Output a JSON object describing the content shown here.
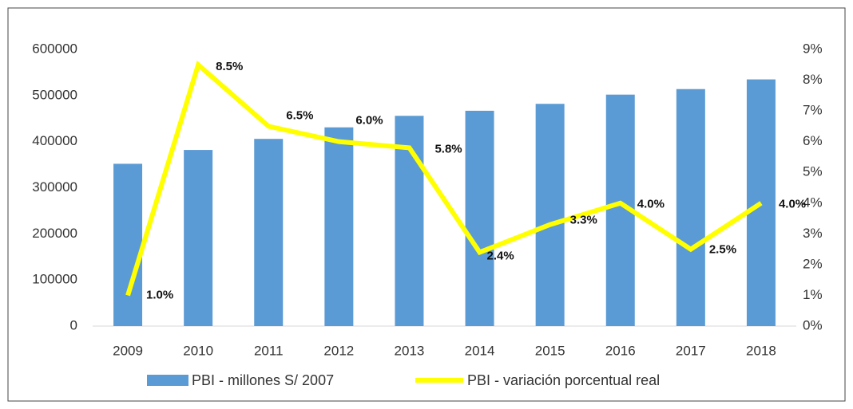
{
  "chart_data": {
    "type": "bar",
    "categories": [
      "2009",
      "2010",
      "2011",
      "2012",
      "2013",
      "2014",
      "2015",
      "2016",
      "2017",
      "2018"
    ],
    "series": [
      {
        "name": "PBI - millones S/ 2007",
        "type": "bar",
        "color": "#5b9bd5",
        "values": [
          352000,
          382000,
          406000,
          431000,
          456000,
          467000,
          482000,
          502000,
          514000,
          535000
        ]
      },
      {
        "name": "PBI - variación porcentual real",
        "type": "line",
        "axis": "y2",
        "color": "#ffff00",
        "values": [
          1.0,
          8.5,
          6.5,
          6.0,
          5.8,
          2.4,
          3.3,
          4.0,
          2.5,
          4.0
        ],
        "value_labels": [
          "1.0%",
          "8.5%",
          "6.5%",
          "6.0%",
          "5.8%",
          "2.4%",
          "3.3%",
          "4.0%",
          "2.5%",
          "4.0%"
        ]
      }
    ],
    "ylim": [
      0,
      600000
    ],
    "yticks": [
      0,
      100000,
      200000,
      300000,
      400000,
      500000,
      600000
    ],
    "y2lim": [
      0,
      9
    ],
    "y2ticks": [
      {
        "value": 0,
        "label": "0%"
      },
      {
        "value": 1,
        "label": "1%"
      },
      {
        "value": 2,
        "label": "2%"
      },
      {
        "value": 3,
        "label": "3%"
      },
      {
        "value": 4,
        "label": "4%"
      },
      {
        "value": 5,
        "label": "5%"
      },
      {
        "value": 6,
        "label": "6%"
      },
      {
        "value": 7,
        "label": "7%"
      },
      {
        "value": 8,
        "label": "8%"
      },
      {
        "value": 9,
        "label": "9%"
      }
    ],
    "legend": "bottom"
  }
}
